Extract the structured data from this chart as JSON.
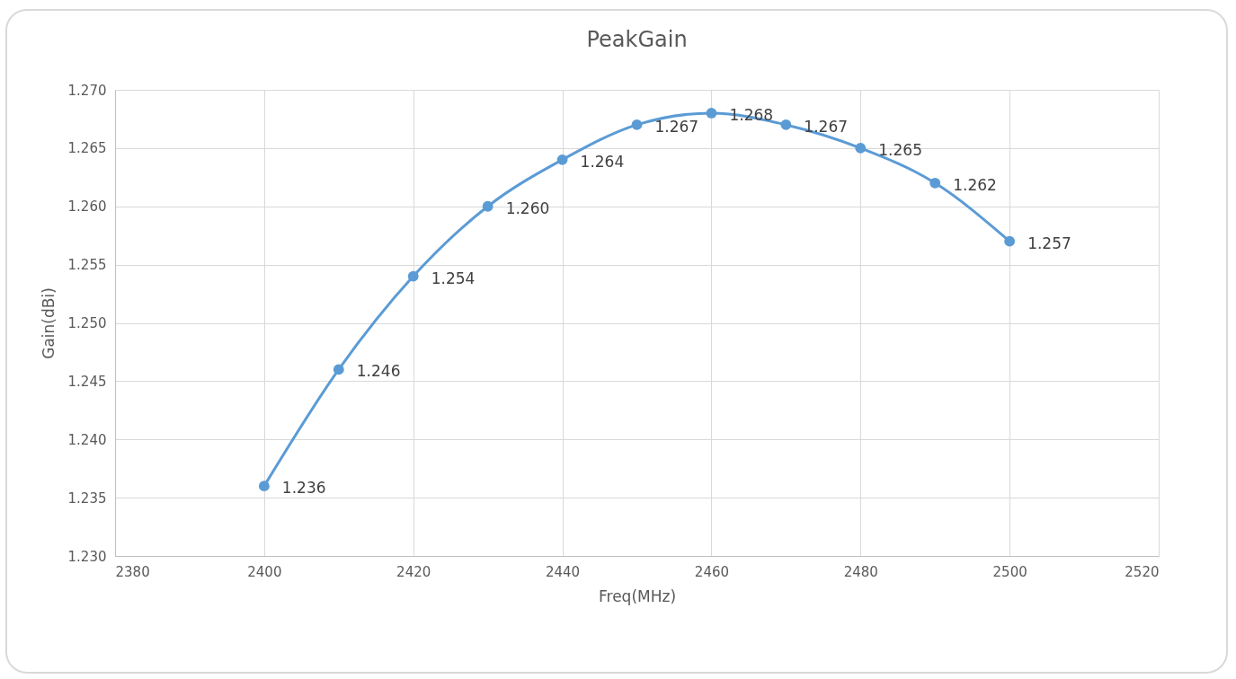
{
  "chart_data": {
    "type": "line",
    "title": "PeakGain",
    "xlabel": "Freq(MHz)",
    "ylabel": "Gain(dBi)",
    "x": [
      2400,
      2410,
      2420,
      2430,
      2440,
      2450,
      2460,
      2470,
      2480,
      2490,
      2500
    ],
    "series": [
      {
        "color": "#5b9bd5",
        "values": [
          1.236,
          1.246,
          1.254,
          1.26,
          1.264,
          1.267,
          1.268,
          1.267,
          1.265,
          1.262,
          1.257
        ],
        "value_labels": [
          "1.236",
          "1.246",
          "1.254",
          "1.260",
          "1.264",
          "1.267",
          "1.268",
          "1.267",
          "1.265",
          "1.262",
          "1.257"
        ]
      }
    ],
    "xlim": [
      2380,
      2520
    ],
    "xticks": [
      2380,
      2400,
      2420,
      2440,
      2460,
      2480,
      2500,
      2520
    ],
    "ylim": [
      1.23,
      1.27
    ],
    "yticks": [
      {
        "value": 1.23,
        "label": "1.230"
      },
      {
        "value": 1.235,
        "label": "1.235"
      },
      {
        "value": 1.24,
        "label": "1.240"
      },
      {
        "value": 1.245,
        "label": "1.245"
      },
      {
        "value": 1.25,
        "label": "1.250"
      },
      {
        "value": 1.255,
        "label": "1.255"
      },
      {
        "value": 1.26,
        "label": "1.260"
      },
      {
        "value": 1.265,
        "label": "1.265"
      },
      {
        "value": 1.27,
        "label": "1.270"
      }
    ],
    "grid": true,
    "marker": "circle",
    "line_style": "solid"
  }
}
